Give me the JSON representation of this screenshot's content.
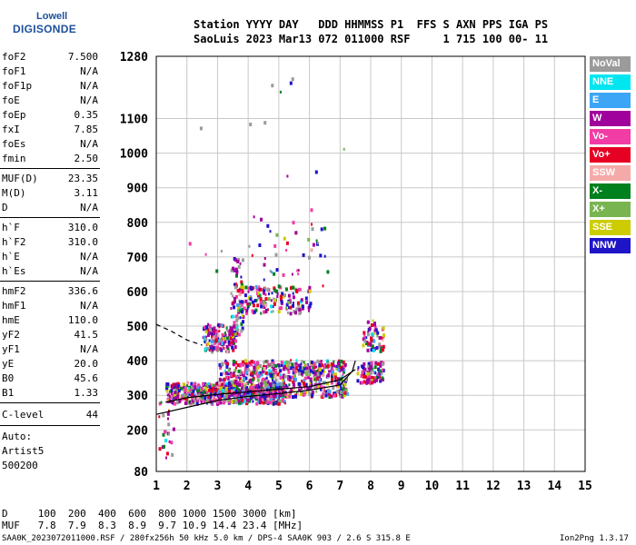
{
  "logo": {
    "line1": "Lowell",
    "line2": "DIGISONDE"
  },
  "header": {
    "line1": "Station YYYY DAY   DDD HHMMSS P1  FFS S AXN PPS IGA PS",
    "line2": "SaoLuis 2023 Mar13 072 011000 RSF     1 715 100 00- 11"
  },
  "params_group1": [
    {
      "name": "foF2",
      "value": "7.500"
    },
    {
      "name": "foF1",
      "value": "N/A"
    },
    {
      "name": "foF1p",
      "value": "N/A"
    },
    {
      "name": "foE",
      "value": "N/A"
    },
    {
      "name": "foEp",
      "value": "0.35"
    },
    {
      "name": "fxI",
      "value": "7.85"
    },
    {
      "name": "foEs",
      "value": "N/A"
    },
    {
      "name": "fmin",
      "value": "2.50"
    }
  ],
  "params_group2": [
    {
      "name": "MUF(D)",
      "value": "23.35"
    },
    {
      "name": "M(D)",
      "value": "3.11"
    },
    {
      "name": "D",
      "value": "N/A"
    }
  ],
  "params_group3": [
    {
      "name": "h`F",
      "value": "310.0"
    },
    {
      "name": "h`F2",
      "value": "310.0"
    },
    {
      "name": "h`E",
      "value": "N/A"
    },
    {
      "name": "h`Es",
      "value": "N/A"
    }
  ],
  "params_group4": [
    {
      "name": "hmF2",
      "value": "336.6"
    },
    {
      "name": "hmF1",
      "value": "N/A"
    },
    {
      "name": "hmE",
      "value": "110.0"
    },
    {
      "name": "yF2",
      "value": "41.5"
    },
    {
      "name": "yF1",
      "value": "N/A"
    },
    {
      "name": "yE",
      "value": "20.0"
    },
    {
      "name": "B0",
      "value": "45.6"
    },
    {
      "name": "B1",
      "value": "1.33"
    }
  ],
  "clevel": {
    "name": "C-level",
    "value": "44"
  },
  "notes": [
    "Auto:",
    "Artist5",
    "500200"
  ],
  "legend": [
    {
      "label": "NoVal",
      "color": "#9b9b9b"
    },
    {
      "label": "NNE",
      "color": "#00e6f0"
    },
    {
      "label": "E",
      "color": "#3da5f5"
    },
    {
      "label": "W",
      "color": "#a0009b"
    },
    {
      "label": "Vo-",
      "color": "#f23ca5"
    },
    {
      "label": "Vo+",
      "color": "#e60023"
    },
    {
      "label": "SSW",
      "color": "#f5aaaa"
    },
    {
      "label": "X-",
      "color": "#00801e"
    },
    {
      "label": "X+",
      "color": "#78b450"
    },
    {
      "label": "SSE",
      "color": "#cccc00"
    },
    {
      "label": "NNW",
      "color": "#1e14c8"
    }
  ],
  "footer": {
    "d_row": "D     100  200  400  600  800 1000 1500 3000 [km]",
    "muf_row": "MUF   7.8  7.9  8.3  8.9  9.7 10.9 14.4 23.4 [MHz]",
    "file_line": "SAA0K_2023072011000.RSF / 280fx256h 50 kHz 5.0 km / DPS-4 SAA0K 903 / 2.6 S 315.8 E",
    "version": "Ion2Png 1.3.17"
  },
  "chart_data": {
    "type": "scatter",
    "x": {
      "min": 1,
      "max": 15,
      "ticks": [
        1,
        2,
        3,
        4,
        5,
        6,
        7,
        8,
        9,
        10,
        11,
        12,
        13,
        14,
        15
      ]
    },
    "y": {
      "min": 80,
      "max": 1280,
      "ticks": [
        80,
        200,
        300,
        400,
        500,
        600,
        700,
        800,
        900,
        1000,
        1100,
        1280
      ]
    },
    "clusters": [
      {
        "x": [
          1.3,
          5.2
        ],
        "y": [
          280,
          340
        ],
        "n": 650
      },
      {
        "x": [
          3.0,
          7.2
        ],
        "y": [
          300,
          405
        ],
        "n": 700
      },
      {
        "x": [
          7.5,
          8.4
        ],
        "y": [
          340,
          400
        ],
        "n": 90
      },
      {
        "x": [
          7.7,
          8.4
        ],
        "y": [
          430,
          520
        ],
        "n": 60
      },
      {
        "x": [
          2.5,
          3.6
        ],
        "y": [
          430,
          510
        ],
        "n": 160
      },
      {
        "x": [
          3.4,
          3.8
        ],
        "y": [
          480,
          700
        ],
        "n": 70
      },
      {
        "x": [
          3.6,
          6.0
        ],
        "y": [
          540,
          620
        ],
        "n": 170
      },
      {
        "x": [
          4.0,
          6.8
        ],
        "y": [
          620,
          820
        ],
        "n": 40
      },
      {
        "x": [
          2.0,
          7.3
        ],
        "y": [
          660,
          1230
        ],
        "n": 20
      },
      {
        "x": [
          1.0,
          1.6
        ],
        "y": [
          120,
          290
        ],
        "n": 25
      }
    ],
    "curves": [
      {
        "name": "solid",
        "points": [
          [
            1,
            245
          ],
          [
            2,
            265
          ],
          [
            3,
            285
          ],
          [
            4,
            297
          ],
          [
            5,
            305
          ],
          [
            6,
            315
          ],
          [
            7,
            330
          ],
          [
            7.4,
            370
          ],
          [
            7.5,
            400
          ]
        ]
      },
      {
        "name": "solid2",
        "points": [
          [
            1.3,
            280
          ],
          [
            2,
            293
          ],
          [
            3,
            303
          ],
          [
            4,
            310
          ],
          [
            5,
            318
          ],
          [
            6,
            325
          ],
          [
            7,
            345
          ],
          [
            7.5,
            375
          ]
        ]
      },
      {
        "name": "dashed",
        "points": [
          [
            1,
            505
          ],
          [
            1.5,
            485
          ],
          [
            2,
            460
          ],
          [
            2.5,
            445
          ]
        ]
      }
    ]
  }
}
